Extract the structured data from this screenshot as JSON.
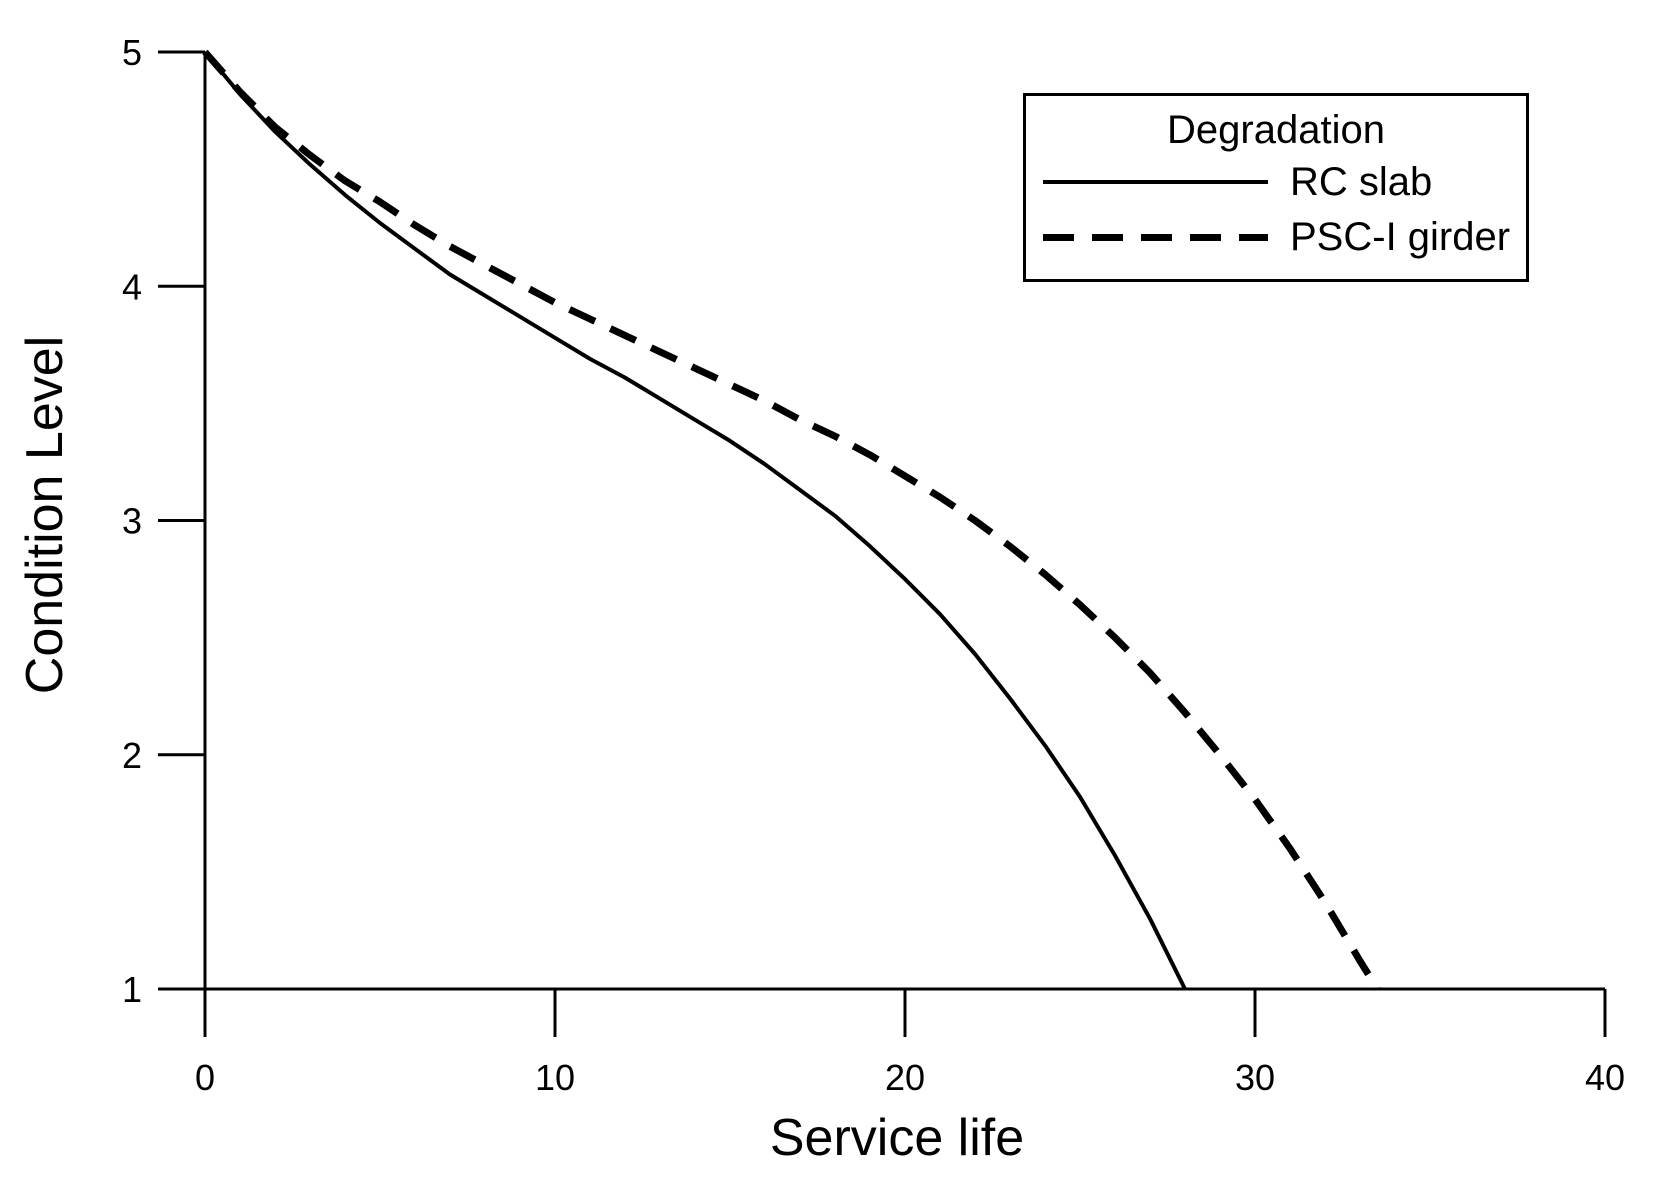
{
  "figure": {
    "background": "#ffffff",
    "line_color": "#000000"
  },
  "chart_data": {
    "type": "line",
    "title": "",
    "xlabel": "Service life",
    "ylabel": "Condition Level",
    "xlim": [
      0,
      40
    ],
    "ylim": [
      1,
      5
    ],
    "xticks": [
      0,
      10,
      20,
      30,
      40
    ],
    "yticks": [
      1,
      2,
      3,
      4,
      5
    ],
    "grid": false,
    "legend": {
      "title": "Degradation",
      "position": "top-right",
      "entries": [
        {
          "label": "RC slab",
          "style": "solid"
        },
        {
          "label": "PSC-I girder",
          "style": "dashed"
        }
      ]
    },
    "series": [
      {
        "name": "RC slab",
        "style": "solid",
        "x": [
          0,
          1,
          2,
          3,
          4,
          5,
          6,
          7,
          8,
          9,
          10,
          11,
          12,
          13,
          14,
          15,
          16,
          17,
          18,
          19,
          20,
          21,
          22,
          23,
          24,
          25,
          26,
          27,
          28
        ],
        "y": [
          5.0,
          4.82,
          4.66,
          4.52,
          4.39,
          4.27,
          4.16,
          4.05,
          3.96,
          3.87,
          3.78,
          3.69,
          3.61,
          3.52,
          3.43,
          3.34,
          3.24,
          3.13,
          3.02,
          2.89,
          2.75,
          2.6,
          2.43,
          2.24,
          2.04,
          1.82,
          1.57,
          1.3,
          1.0
        ]
      },
      {
        "name": "PSC-I girder",
        "style": "dashed",
        "x": [
          0,
          1,
          2,
          3,
          4,
          5,
          6,
          7,
          8,
          9,
          10,
          11,
          12,
          13,
          14,
          15,
          16,
          17,
          18,
          19,
          20,
          21,
          22,
          23,
          24,
          25,
          26,
          27,
          28,
          29,
          30,
          31,
          32,
          33,
          33.5
        ],
        "y": [
          5.0,
          4.83,
          4.68,
          4.56,
          4.45,
          4.36,
          4.26,
          4.17,
          4.09,
          4.01,
          3.93,
          3.86,
          3.79,
          3.72,
          3.65,
          3.58,
          3.51,
          3.43,
          3.36,
          3.28,
          3.19,
          3.1,
          3.0,
          2.89,
          2.77,
          2.64,
          2.5,
          2.35,
          2.18,
          2.0,
          1.81,
          1.6,
          1.37,
          1.12,
          1.0
        ]
      }
    ]
  }
}
